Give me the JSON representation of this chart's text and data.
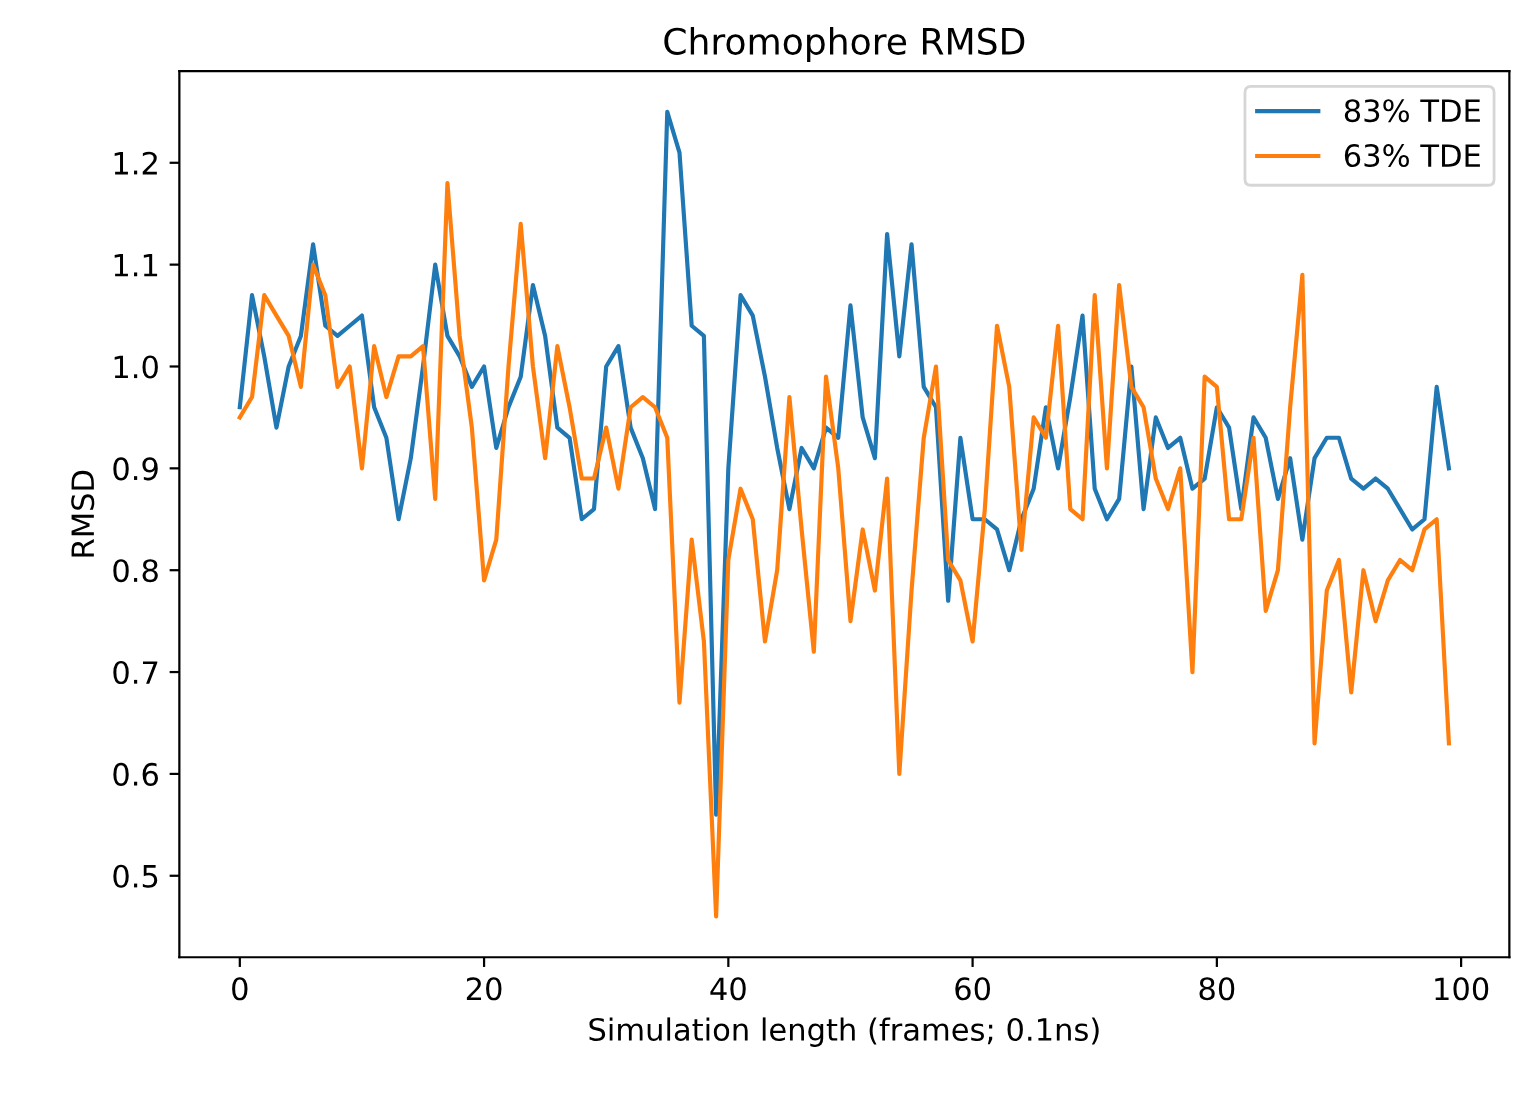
{
  "chart_data": {
    "type": "line",
    "title": "Chromophore RMSD",
    "xlabel": "Simulation length (frames; 0.1ns)",
    "ylabel": "RMSD",
    "x": [
      0,
      1,
      2,
      3,
      4,
      5,
      6,
      7,
      8,
      9,
      10,
      11,
      12,
      13,
      14,
      15,
      16,
      17,
      18,
      19,
      20,
      21,
      22,
      23,
      24,
      25,
      26,
      27,
      28,
      29,
      30,
      31,
      32,
      33,
      34,
      35,
      36,
      37,
      38,
      39,
      40,
      41,
      42,
      43,
      44,
      45,
      46,
      47,
      48,
      49,
      50,
      51,
      52,
      53,
      54,
      55,
      56,
      57,
      58,
      59,
      60,
      61,
      62,
      63,
      64,
      65,
      66,
      67,
      68,
      69,
      70,
      71,
      72,
      73,
      74,
      75,
      76,
      77,
      78,
      79,
      80,
      81,
      82,
      83,
      84,
      85,
      86,
      87,
      88,
      89,
      90,
      91,
      92,
      93,
      94,
      95,
      96,
      97,
      98,
      99
    ],
    "series": [
      {
        "name": "83% TDE",
        "color": "#1f77b4",
        "values": [
          0.96,
          1.07,
          1.01,
          0.94,
          1.0,
          1.03,
          1.12,
          1.04,
          1.03,
          1.04,
          1.05,
          0.96,
          0.93,
          0.85,
          0.91,
          1.0,
          1.1,
          1.03,
          1.01,
          0.98,
          1.0,
          0.92,
          0.96,
          0.99,
          1.08,
          1.03,
          0.94,
          0.93,
          0.85,
          0.86,
          1.0,
          1.02,
          0.94,
          0.91,
          0.86,
          1.25,
          1.21,
          1.04,
          1.03,
          0.56,
          0.9,
          1.07,
          1.05,
          0.99,
          0.92,
          0.86,
          0.92,
          0.9,
          0.94,
          0.93,
          1.06,
          0.95,
          0.91,
          1.13,
          1.01,
          1.12,
          0.98,
          0.96,
          0.77,
          0.93,
          0.85,
          0.85,
          0.84,
          0.8,
          0.85,
          0.88,
          0.96,
          0.9,
          0.97,
          1.05,
          0.88,
          0.85,
          0.87,
          1.0,
          0.86,
          0.95,
          0.92,
          0.93,
          0.88,
          0.89,
          0.96,
          0.94,
          0.86,
          0.95,
          0.93,
          0.87,
          0.91,
          0.83,
          0.91,
          0.93,
          0.93,
          0.89,
          0.88,
          0.89,
          0.88,
          0.86,
          0.84,
          0.85,
          0.98,
          0.9
        ]
      },
      {
        "name": "63% TDE",
        "color": "#ff7f0e",
        "values": [
          0.95,
          0.97,
          1.07,
          1.05,
          1.03,
          0.98,
          1.1,
          1.07,
          0.98,
          1.0,
          0.9,
          1.02,
          0.97,
          1.01,
          1.01,
          1.02,
          0.87,
          1.18,
          1.03,
          0.94,
          0.79,
          0.83,
          1.0,
          1.14,
          1.0,
          0.91,
          1.02,
          0.96,
          0.89,
          0.89,
          0.94,
          0.88,
          0.96,
          0.97,
          0.96,
          0.93,
          0.67,
          0.83,
          0.73,
          0.46,
          0.81,
          0.88,
          0.85,
          0.73,
          0.8,
          0.97,
          0.84,
          0.72,
          0.99,
          0.9,
          0.75,
          0.84,
          0.78,
          0.89,
          0.6,
          0.78,
          0.93,
          1.0,
          0.81,
          0.79,
          0.73,
          0.86,
          1.04,
          0.98,
          0.82,
          0.95,
          0.93,
          1.04,
          0.86,
          0.85,
          1.07,
          0.9,
          1.08,
          0.98,
          0.96,
          0.89,
          0.86,
          0.9,
          0.7,
          0.99,
          0.98,
          0.85,
          0.85,
          0.93,
          0.76,
          0.8,
          0.96,
          1.09,
          0.63,
          0.78,
          0.81,
          0.68,
          0.8,
          0.75,
          0.79,
          0.81,
          0.8,
          0.84,
          0.85,
          0.63
        ]
      }
    ],
    "xlim": [
      -4.95,
      103.95
    ],
    "xticks": [
      0,
      20,
      40,
      60,
      80,
      100
    ],
    "ylim": [
      0.42,
      1.29
    ],
    "yticks": [
      0.5,
      0.6,
      0.7,
      0.8,
      0.9,
      {
        "value": 1.0,
        "label": "1.0"
      },
      1.1,
      1.2
    ],
    "legend": "top right",
    "grid": false,
    "marker": "none",
    "line_style": "solid"
  }
}
